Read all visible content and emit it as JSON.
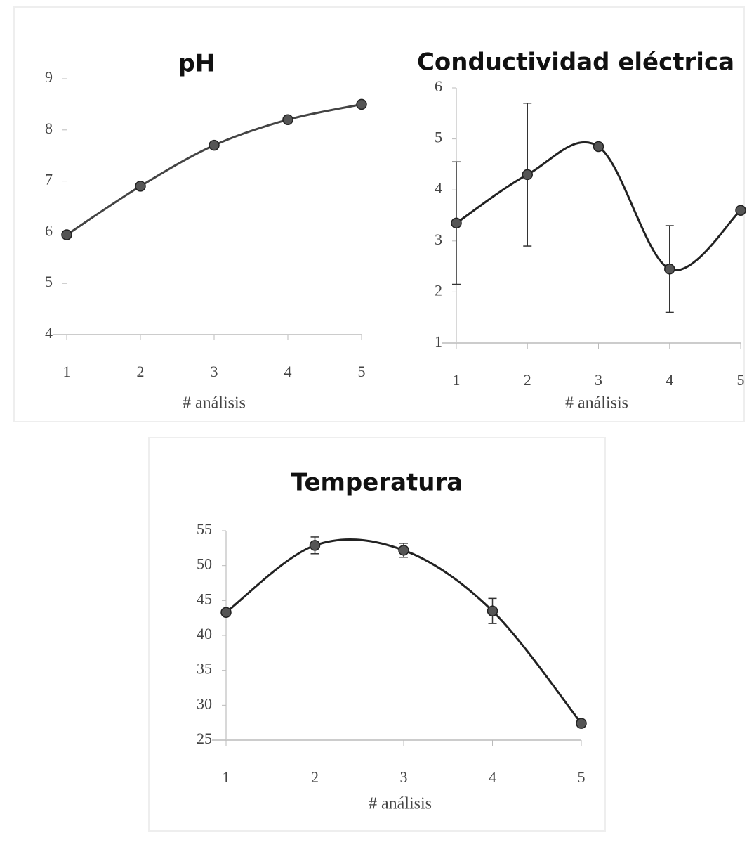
{
  "chart_data": [
    {
      "type": "line",
      "title": "pH",
      "xlabel": "# análisis",
      "x": [
        1,
        2,
        3,
        4,
        5
      ],
      "values": [
        5.95,
        6.9,
        7.7,
        8.2,
        8.5
      ],
      "color": "#444444",
      "xlim": [
        1,
        5
      ],
      "xticks": [
        1,
        2,
        3,
        4,
        5
      ],
      "ylim": [
        4,
        9
      ],
      "yticks": [
        4,
        5,
        6,
        7,
        8,
        9
      ]
    },
    {
      "type": "line",
      "title": "Conductividad eléctrica",
      "xlabel": "# análisis",
      "x": [
        1,
        2,
        3,
        4,
        5
      ],
      "values": [
        3.35,
        4.3,
        4.85,
        2.45,
        3.6
      ],
      "errors": [
        1.2,
        1.4,
        0.05,
        0.85,
        0
      ],
      "color": "#222222",
      "xlim": [
        1,
        5
      ],
      "xticks": [
        1,
        2,
        3,
        4,
        5
      ],
      "ylim": [
        1,
        6
      ],
      "yticks": [
        1,
        2,
        3,
        4,
        5,
        6
      ]
    },
    {
      "type": "line",
      "title": "Temperatura",
      "xlabel": "# análisis",
      "x": [
        1,
        2,
        3,
        4,
        5
      ],
      "values": [
        43.3,
        52.9,
        52.2,
        43.5,
        27.4
      ],
      "errors": [
        0,
        1.2,
        1,
        1.8,
        0
      ],
      "color": "#222222",
      "xlim": [
        1,
        5
      ],
      "xticks": [
        1,
        2,
        3,
        4,
        5
      ],
      "ylim": [
        25,
        55
      ],
      "yticks": [
        25,
        30,
        35,
        40,
        45,
        50,
        55
      ]
    }
  ]
}
